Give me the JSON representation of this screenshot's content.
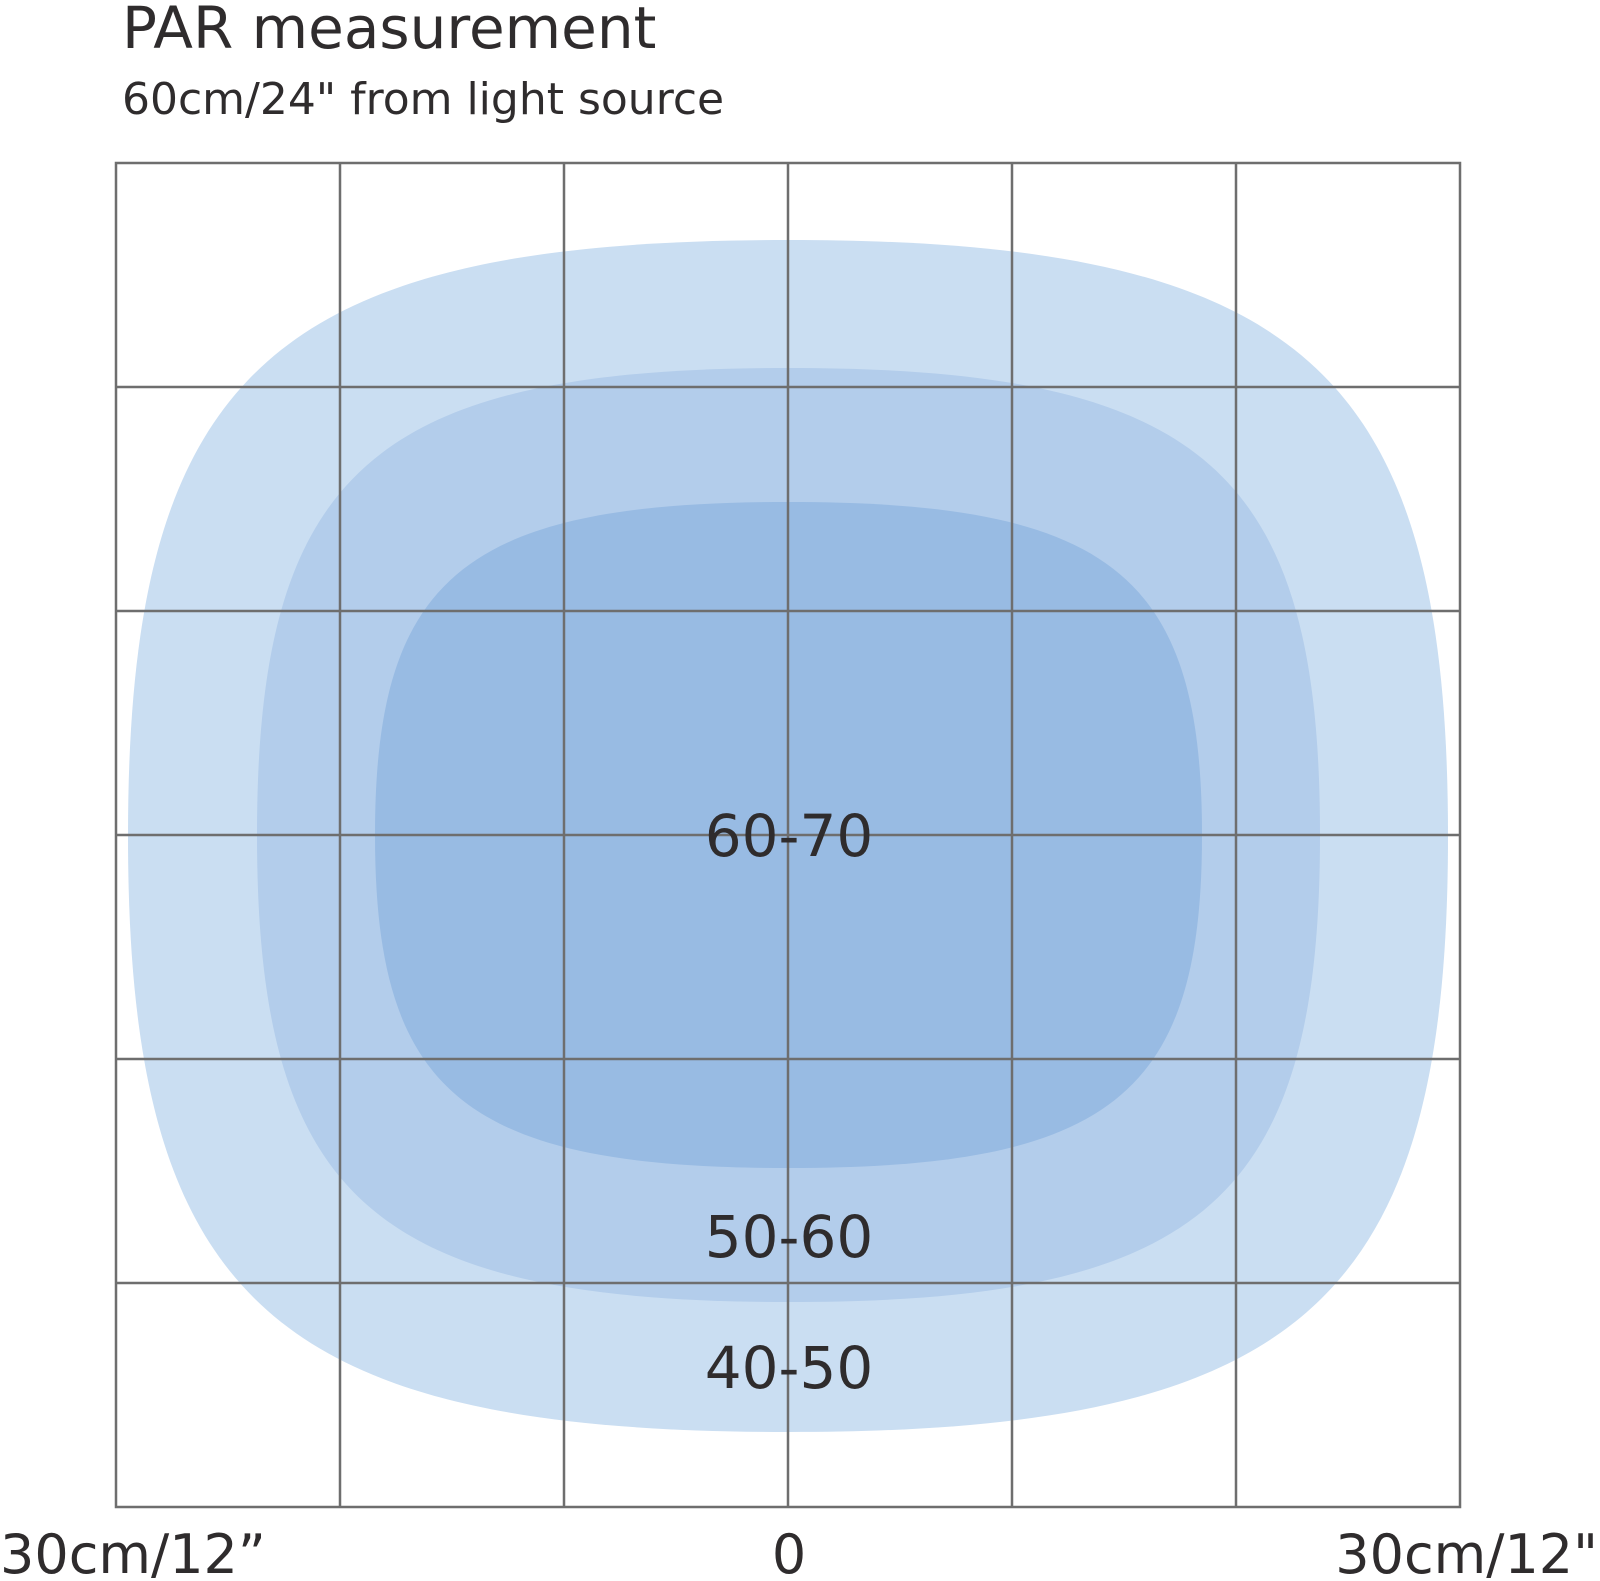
{
  "header": {
    "title": "PAR measurement",
    "subtitle": "60cm/24\" from light source"
  },
  "zones": [
    {
      "label": "40-50"
    },
    {
      "label": "50-60"
    },
    {
      "label": "60-70"
    }
  ],
  "axis": {
    "left": "30cm/12”",
    "center": "0",
    "right": "30cm/12\""
  }
}
